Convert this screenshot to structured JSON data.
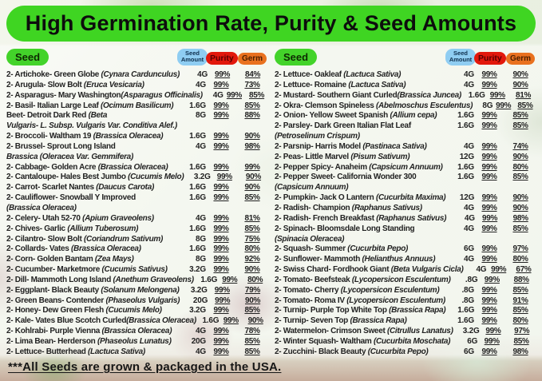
{
  "header": {
    "title": "High Germination Rate, Purity & Seed Amounts"
  },
  "colors": {
    "banner_green": "#3fd522",
    "seed_badge": "#43d32a",
    "amount_badge": "#8fcdf2",
    "purity_badge": "#e2180c",
    "germ_badge": "#e9711f"
  },
  "columns_header": {
    "seed_label": "Seed",
    "amount_label": "Seed Amount",
    "purity_label": "Purity",
    "germ_label": "Germ"
  },
  "columns": [
    {
      "rows": [
        {
          "name": "2- Artichoke- Green Globe (Cynara Cardunculus)",
          "amount": "4G",
          "purity": "99%",
          "germ": "84%"
        },
        {
          "name": "2- Arugula- Slow Bolt (Eruca Vesicaria)",
          "amount": "4G",
          "purity": "99%",
          "germ": "73%"
        },
        {
          "name": "2- Asparagus- Mary Washington(Asparagus Officinalis)",
          "amount": "4G",
          "purity": "99%",
          "germ": "85%"
        },
        {
          "name": "2- Basil- Italian Large Leaf (Ocimum Basilicum)",
          "amount": "1.6G",
          "purity": "99%",
          "germ": "85%"
        },
        {
          "name": "Beet- Detroit Dark Red (Beta",
          "amount": "8G",
          "purity": "99%",
          "germ": "88%"
        },
        {
          "name": "Vulgaris- L. Subsp. Vulgaris Var. Conditiva Alef.)",
          "italic": true
        },
        {
          "name": "2- Broccoli- Waltham 19 (Brassica Oleracea)",
          "amount": "1.6G",
          "purity": "99%",
          "germ": "90%"
        },
        {
          "name": "2- Brussel- Sprout Long Island",
          "amount": "4G",
          "purity": "99%",
          "germ": "98%"
        },
        {
          "name": "Brassica (Oleracea Var. Gemmifera)",
          "italic": true
        },
        {
          "name": "2- Cabbage- Golden Acre (Brassica Oleracea)",
          "amount": "1.6G",
          "purity": "99%",
          "germ": "99%"
        },
        {
          "name": "2- Cantaloupe- Hales Best Jumbo (Cucumis Melo)",
          "amount": "3.2G",
          "purity": "99%",
          "germ": "90%"
        },
        {
          "name": "2- Carrot- Scarlet Nantes (Daucus Carota)",
          "amount": "1.6G",
          "purity": "99%",
          "germ": "90%"
        },
        {
          "name": "2- Cauliflower- Snowball Y Improved",
          "amount": "1.6G",
          "purity": "99%",
          "germ": "85%"
        },
        {
          "name": "(Brassica Oleracea)",
          "italic": true
        },
        {
          "name": "2- Celery- Utah 52-70 (Apium Graveolens)",
          "amount": "4G",
          "purity": "99%",
          "germ": "81%"
        },
        {
          "name": "2- Chives- Garlic (Allium Tuberosum)",
          "amount": "1.6G",
          "purity": "99%",
          "germ": "85%"
        },
        {
          "name": "2- Cilantro- Slow Bolt (Coriandrum Sativum)",
          "amount": "8G",
          "purity": "99%",
          "germ": "75%"
        },
        {
          "name": "2- Collards- Vates (Brassica Oleracea)",
          "amount": "1.6G",
          "purity": "99%",
          "germ": "80%"
        },
        {
          "name": "2- Corn- Golden Bantam (Zea Mays)",
          "amount": "8G",
          "purity": "99%",
          "germ": "92%"
        },
        {
          "name": "2- Cucumber- Marketmore (Cucumis Sativus)",
          "amount": "3.2G",
          "purity": "99%",
          "germ": "90%"
        },
        {
          "name": "2- Dill- Mammoth Long Island (Anethum Graveolens)",
          "amount": "1.6G",
          "purity": "99%",
          "germ": "80%"
        },
        {
          "name": "2- Eggplant- Black Beauty (Solanum Melongena)",
          "amount": "3.2G",
          "purity": "99%",
          "germ": "79%"
        },
        {
          "name": "2- Green Beans- Contender (Phaseolus Vulgaris)",
          "amount": "20G",
          "purity": "99%",
          "germ": "90%"
        },
        {
          "name": "2- Honey- Dew Green Flesh (Cucumis Melo)",
          "amount": "3.2G",
          "purity": "99%",
          "germ": "85%"
        },
        {
          "name": "2- Kale- Vates Blue Scotch Curled(Brassica Oleracea)",
          "amount": "1.6G",
          "purity": "99%",
          "germ": "90%"
        },
        {
          "name": "2- Kohlrabi- Purple Vienna (Brassica Oleracea)",
          "amount": "4G",
          "purity": "99%",
          "germ": "78%"
        },
        {
          "name": "2- Lima Bean- Herderson (Phaseolus Lunatus)",
          "amount": "20G",
          "purity": "99%",
          "germ": "85%"
        },
        {
          "name": "2- Lettuce- Butterhead (Lactuca Sativa)",
          "amount": "4G",
          "purity": "99%",
          "germ": "85%"
        }
      ]
    },
    {
      "rows": [
        {
          "name": "2- Lettuce- Oakleaf (Lactuca Sativa)",
          "amount": "4G",
          "purity": "99%",
          "germ": "90%"
        },
        {
          "name": "2- Lettuce- Romaine (Lactuca Sativa)",
          "amount": "4G",
          "purity": "99%",
          "germ": "90%"
        },
        {
          "name": "2- Mustard- Southern Giant Curled(Brassica Juncea)",
          "amount": "1.6G",
          "purity": "99%",
          "germ": "81%"
        },
        {
          "name": "2- Okra- Clemson Spineless (Abelmoschus Esculentus)",
          "amount": "8G",
          "purity": "99%",
          "germ": "85%"
        },
        {
          "name": "2- Onion- Yellow Sweet Spanish (Allium cepa)",
          "amount": "1.6G",
          "purity": "99%",
          "germ": "85%"
        },
        {
          "name": "2- Parsley- Dark Green Italian Flat Leaf",
          "amount": "1.6G",
          "purity": "99%",
          "germ": "85%"
        },
        {
          "name": "(Petroselinum Crispum)",
          "italic": true
        },
        {
          "name": "2- Parsnip- Harris Model (Pastinaca Sativa)",
          "amount": "4G",
          "purity": "99%",
          "germ": "74%"
        },
        {
          "name": "2- Peas- Little Marvel (Pisum Sativum)",
          "amount": "12G",
          "purity": "99%",
          "germ": "90%"
        },
        {
          "name": "2- Pepper Spicy- Anaheim (Capsicum Annuum)",
          "amount": "1.6G",
          "purity": "99%",
          "germ": "80%"
        },
        {
          "name": "2- Pepper Sweet- California Wonder 300",
          "amount": "1.6G",
          "purity": "99%",
          "germ": "85%"
        },
        {
          "name": "(Capsicum Annuum)",
          "italic": true
        },
        {
          "name": "2- Pumpkin- Jack O Lantern (Cucurbita Maxima)",
          "amount": "12G",
          "purity": "99%",
          "germ": "90%"
        },
        {
          "name": "2- Radish- Champion (Raphanus Sativus)",
          "amount": "4G",
          "purity": "99%",
          "germ": "90%"
        },
        {
          "name": "2- Radish- French Breakfast (Raphanus Sativus)",
          "amount": "4G",
          "purity": "99%",
          "germ": "98%"
        },
        {
          "name": "2- Spinach- Bloomsdale Long Standing",
          "amount": "4G",
          "purity": "99%",
          "germ": "85%"
        },
        {
          "name": "(Spinacia Oleracea)",
          "italic": true
        },
        {
          "name": "2- Squash- Summer (Cucurbita Pepo)",
          "amount": "6G",
          "purity": "99%",
          "germ": "97%"
        },
        {
          "name": "2- Sunflower- Mammoth (Helianthus Annuus)",
          "amount": "4G",
          "purity": "99%",
          "germ": "80%"
        },
        {
          "name": "2- Swiss Chard- Fordhook Giant (Beta Vulgaris Cicla)",
          "amount": "4G",
          "purity": "99%",
          "germ": "67%"
        },
        {
          "name": "2- Tomato- Beefsteak (Lycopersicon Esculentum)",
          "amount": ".8G",
          "purity": "99%",
          "germ": "88%"
        },
        {
          "name": "2- Tomato- Cherry (Lycopersicon Esculentum)",
          "amount": ".8G",
          "purity": "99%",
          "germ": "85%"
        },
        {
          "name": "2- Tomato- Roma IV (Lycopersicon Esculentum)",
          "amount": ".8G",
          "purity": "99%",
          "germ": "91%"
        },
        {
          "name": "2- Turnip- Purple Top White Top (Brassica Rapa)",
          "amount": "1.6G",
          "purity": "99%",
          "germ": "85%"
        },
        {
          "name": "2- Turnip- Seven Top (Brassica Rapa)",
          "amount": "1.6G",
          "purity": "99%",
          "germ": "80%"
        },
        {
          "name": "2- Watermelon- Crimson Sweet (Citrullus Lanatus)",
          "amount": "3.2G",
          "purity": "99%",
          "germ": "97%"
        },
        {
          "name": "2- Winter Squash- Waltham (Cucurbita Moschata)",
          "amount": "6G",
          "purity": "99%",
          "germ": "85%"
        },
        {
          "name": "2- Zucchini-  Black Beauty (Cucurbita Pepo)",
          "amount": "6G",
          "purity": "99%",
          "germ": "98%"
        }
      ]
    }
  ],
  "footnote": "***All Seeds are grown & packaged in the USA."
}
